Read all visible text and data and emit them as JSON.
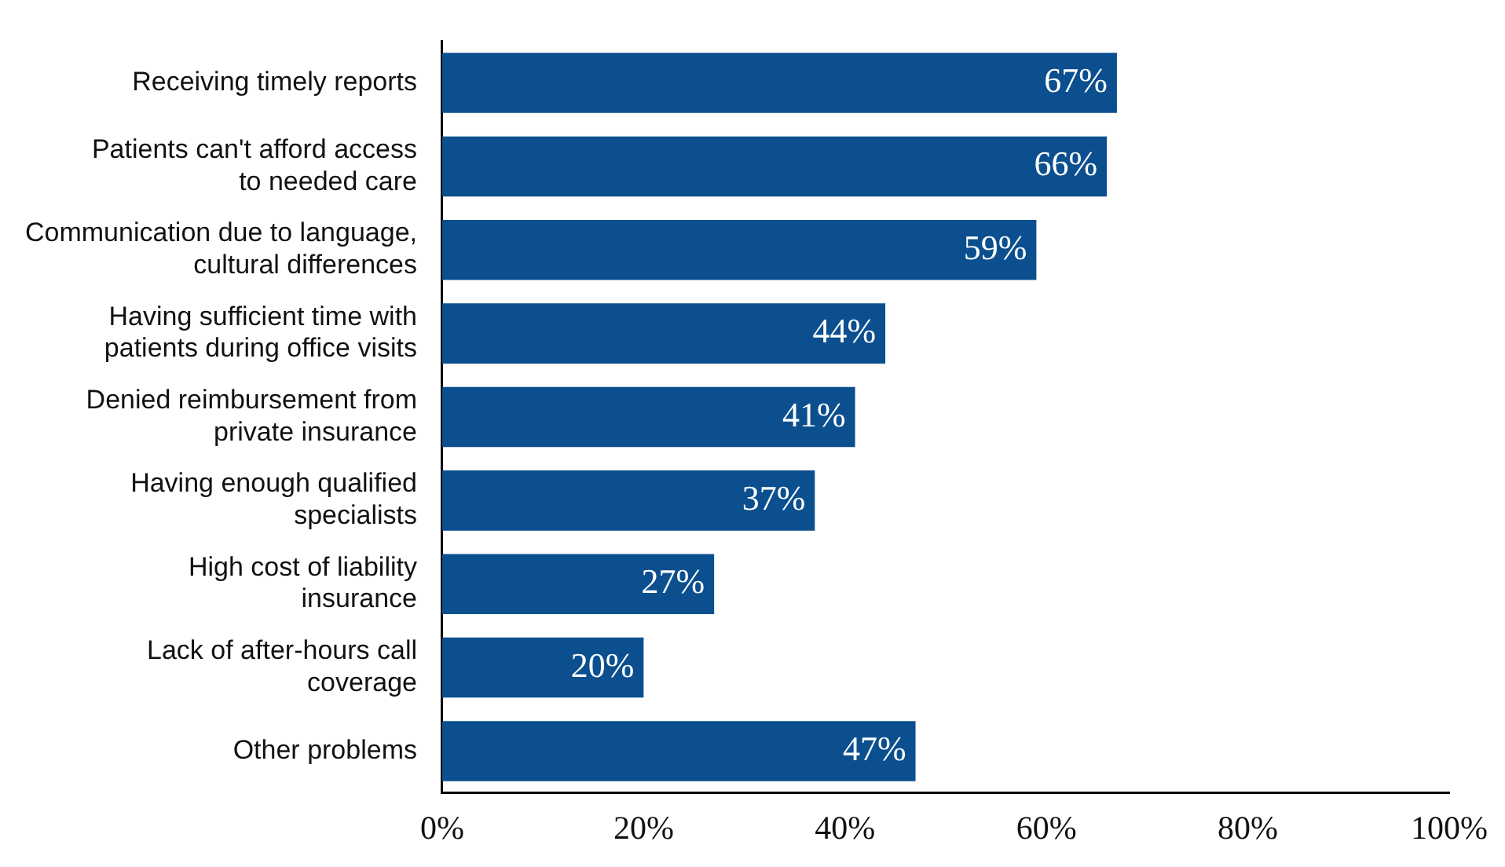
{
  "chart_data": {
    "type": "bar",
    "orientation": "horizontal",
    "categories": [
      "Receiving timely reports",
      "Patients can't afford access to needed care",
      "Communication due to language, cultural differences",
      "Having sufficient time with patients during office visits",
      "Denied reimbursement from private insurance",
      "Having enough qualified specialists",
      "High cost of liability insurance",
      "Lack of after-hours call coverage",
      "Other problems"
    ],
    "values": [
      67,
      66,
      59,
      44,
      41,
      37,
      27,
      20,
      47
    ],
    "value_labels": [
      "67%",
      "66%",
      "59%",
      "44%",
      "41%",
      "37%",
      "27%",
      "20%",
      "47%"
    ],
    "color": "#0b4f8f",
    "xlim": [
      0,
      100
    ],
    "xticks": [
      {
        "value": 0,
        "label": "0%"
      },
      {
        "value": 20,
        "label": "20%"
      },
      {
        "value": 40,
        "label": "40%"
      },
      {
        "value": 60,
        "label": "60%"
      },
      {
        "value": 80,
        "label": "80%"
      },
      {
        "value": 100,
        "label": "100%"
      }
    ],
    "grid": false,
    "legend": false
  }
}
